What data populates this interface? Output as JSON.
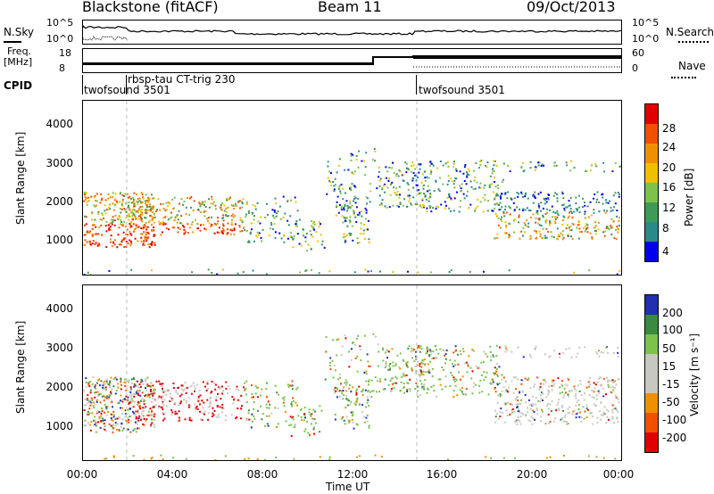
{
  "header": {
    "station": "Blackstone (fitACF)",
    "beam": "Beam 11",
    "date": "09/Oct/2013"
  },
  "noise_panel": {
    "left_label": "N.Sky",
    "right_label": "N.Search",
    "ticks_left": [
      "10^5",
      "10^0"
    ],
    "ticks_right": [
      "10^5",
      "10^0"
    ]
  },
  "freq_panel": {
    "left_label_line1": "Freq.",
    "left_label_line2": "[MHz]",
    "right_label": "Nave",
    "ticks_left": [
      "18",
      "8"
    ],
    "ticks_right": [
      "60",
      "0"
    ]
  },
  "cpid_panel": {
    "label": "CPID",
    "programs": [
      {
        "name": "twofsound 3501",
        "start": "00:00"
      },
      {
        "name": "rbsp-tau CT-trig 230",
        "start": "01:55"
      },
      {
        "name": "twofsound 3501",
        "start": "15:00"
      }
    ]
  },
  "colors": {
    "power": [
      "#0000ee",
      "#2a8a8a",
      "#3f9a55",
      "#7cc24a",
      "#f0c000",
      "#f09000",
      "#f05000",
      "#e00000"
    ],
    "velocity": [
      "#e00000",
      "#f05000",
      "#f09000",
      "#c8c8c0",
      "#c8c8c0",
      "#7cc24a",
      "#3a8a40",
      "#2030b0"
    ]
  },
  "chart_data": [
    {
      "type": "heatmap",
      "title": "",
      "xlabel": "Time UT",
      "ylabel": "Slant Range [km]",
      "x_ticks": [
        "00:00",
        "04:00",
        "08:00",
        "12:00",
        "16:00",
        "20:00",
        "00:00"
      ],
      "y_ticks": [
        "1000",
        "2000",
        "3000",
        "4000"
      ],
      "ylim": [
        180,
        4600
      ],
      "colorbar": {
        "label": "Power [dB]",
        "ticks": [
          "4",
          "8",
          "12",
          "16",
          "20",
          "24",
          "28"
        ],
        "range": [
          0,
          30
        ]
      }
    },
    {
      "type": "heatmap",
      "title": "",
      "xlabel": "Time UT",
      "ylabel": "Slant Range [km]",
      "x_ticks": [
        "00:00",
        "04:00",
        "08:00",
        "12:00",
        "16:00",
        "20:00",
        "00:00"
      ],
      "y_ticks": [
        "1000",
        "2000",
        "3000",
        "4000"
      ],
      "ylim": [
        180,
        4600
      ],
      "colorbar": {
        "label": "Velocity [m s⁻¹]",
        "ticks": [
          "200",
          "100",
          "50",
          "15",
          "-15",
          "-50",
          "-100",
          "-200"
        ],
        "range": [
          -250,
          250
        ]
      }
    }
  ]
}
